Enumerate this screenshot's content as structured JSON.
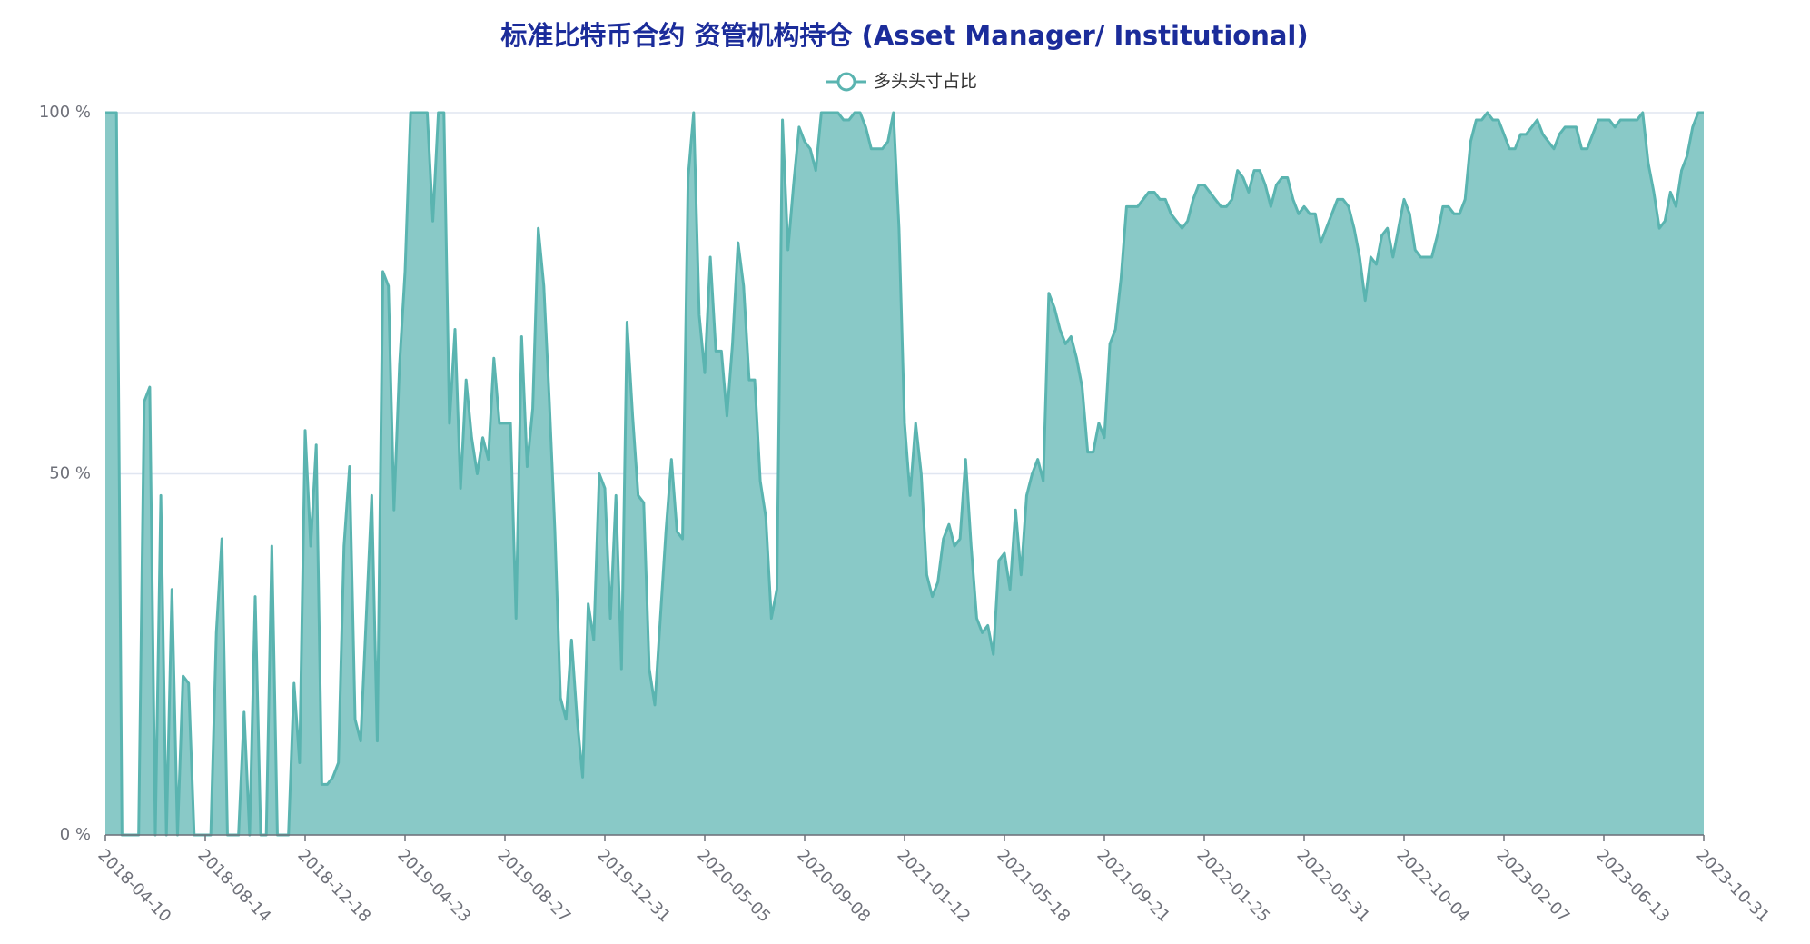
{
  "chart_data": {
    "type": "area",
    "title": "标准比特币合约 资管机构持仓 (Asset Manager/ Institutional)",
    "categories": [
      "2018-04-10",
      null,
      null,
      null,
      null,
      null,
      null,
      null,
      null,
      null,
      null,
      null,
      null,
      null,
      null,
      null,
      null,
      null,
      "2018-08-14",
      null,
      null,
      null,
      null,
      null,
      null,
      null,
      null,
      null,
      null,
      null,
      null,
      null,
      null,
      null,
      null,
      null,
      "2018-12-18",
      null,
      null,
      null,
      null,
      null,
      null,
      null,
      null,
      null,
      null,
      null,
      null,
      null,
      null,
      null,
      null,
      null,
      "2019-04-23",
      null,
      null,
      null,
      null,
      null,
      null,
      null,
      null,
      null,
      null,
      null,
      null,
      null,
      null,
      null,
      null,
      null,
      "2019-08-27",
      null,
      null,
      null,
      null,
      null,
      null,
      null,
      null,
      null,
      null,
      null,
      null,
      null,
      null,
      null,
      null,
      null,
      "2019-12-31",
      null,
      null,
      null,
      null,
      null,
      null,
      null,
      null,
      null,
      null,
      null,
      null,
      null,
      null,
      null,
      null,
      null,
      "2020-05-05",
      null,
      null,
      null,
      null,
      null,
      null,
      null,
      null,
      null,
      null,
      null,
      null,
      null,
      null,
      null,
      null,
      null,
      "2020-09-08",
      null,
      null,
      null,
      null,
      null,
      null,
      null,
      null,
      null,
      null,
      null,
      null,
      null,
      null,
      null,
      null,
      null,
      "2021-01-12",
      null,
      null,
      null,
      null,
      null,
      null,
      null,
      null,
      null,
      null,
      null,
      null,
      null,
      null,
      null,
      null,
      null,
      "2021-05-18",
      null,
      null,
      null,
      null,
      null,
      null,
      null,
      null,
      null,
      null,
      null,
      null,
      null,
      null,
      null,
      null,
      null,
      "2021-09-21",
      null,
      null,
      null,
      null,
      null,
      null,
      null,
      null,
      null,
      null,
      null,
      null,
      null,
      null,
      null,
      null,
      null,
      "2022-01-25",
      null,
      null,
      null,
      null,
      null,
      null,
      null,
      null,
      null,
      null,
      null,
      null,
      null,
      null,
      null,
      null,
      null,
      "2022-05-31",
      null,
      null,
      null,
      null,
      null,
      null,
      null,
      null,
      null,
      null,
      null,
      null,
      null,
      null,
      null,
      null,
      null,
      "2022-10-04",
      null,
      null,
      null,
      null,
      null,
      null,
      null,
      null,
      null,
      null,
      null,
      null,
      null,
      null,
      null,
      null,
      null,
      "2023-02-07",
      null,
      null,
      null,
      null,
      null,
      null,
      null,
      null,
      null,
      null,
      null,
      null,
      null,
      null,
      null,
      null,
      null,
      "2023-06-13",
      null,
      null,
      null,
      null,
      null,
      null,
      null,
      null,
      null,
      null,
      null,
      null,
      null,
      null,
      null,
      null,
      null,
      "2023-10-31"
    ],
    "series": [
      {
        "name": "多头头寸占比",
        "color": "#5ab4b0",
        "fill": "#89c9c7",
        "values": [
          100,
          100,
          100,
          0,
          0,
          0,
          0,
          60,
          62,
          0,
          47,
          0,
          34,
          0,
          22,
          21,
          0,
          0,
          0,
          0,
          28,
          41,
          0,
          0,
          0,
          17,
          0,
          33,
          0,
          0,
          40,
          0,
          0,
          0,
          21,
          10,
          56,
          40,
          54,
          7,
          7,
          8,
          10,
          40,
          51,
          16,
          13,
          30,
          47,
          13,
          78,
          76,
          45,
          65,
          78,
          100,
          100,
          100,
          100,
          85,
          100,
          100,
          57,
          70,
          48,
          63,
          55,
          50,
          55,
          52,
          66,
          57,
          57,
          57,
          30,
          69,
          51,
          59,
          84,
          76,
          60,
          42,
          19,
          16,
          27,
          16,
          8,
          32,
          27,
          50,
          48,
          30,
          47,
          23,
          71,
          58,
          47,
          46,
          23,
          18,
          30,
          42,
          52,
          42,
          41,
          91,
          100,
          72,
          64,
          80,
          67,
          67,
          58,
          68,
          82,
          76,
          63,
          63,
          49,
          44,
          30,
          34,
          99,
          81,
          90,
          98,
          96,
          95,
          92,
          100,
          100,
          100,
          100,
          99,
          99,
          100,
          100,
          98,
          95,
          95,
          95,
          96,
          100,
          84,
          57,
          47,
          57,
          50,
          36,
          33,
          35,
          41,
          43,
          40,
          41,
          52,
          40,
          30,
          28,
          29,
          25,
          38,
          39,
          34,
          45,
          36,
          47,
          50,
          52,
          49,
          75,
          73,
          70,
          68,
          69,
          66,
          62,
          53,
          53,
          57,
          55,
          68,
          70,
          77,
          87,
          87,
          87,
          88,
          89,
          89,
          88,
          88,
          86,
          85,
          84,
          85,
          88,
          90,
          90,
          89,
          88,
          87,
          87,
          88,
          92,
          91,
          89,
          92,
          92,
          90,
          87,
          90,
          91,
          91,
          88,
          86,
          87,
          86,
          86,
          82,
          84,
          86,
          88,
          88,
          87,
          84,
          80,
          74,
          80,
          79,
          83,
          84,
          80,
          84,
          88,
          86,
          81,
          80,
          80,
          80,
          83,
          87,
          87,
          86,
          86,
          88,
          96,
          99,
          99,
          100,
          99,
          99,
          97,
          95,
          95,
          97,
          97,
          98,
          99,
          97,
          96,
          95,
          97,
          98,
          98,
          98,
          95,
          95,
          97,
          99,
          99,
          99,
          98,
          99,
          99,
          99,
          99,
          100,
          93,
          89,
          84,
          85,
          89,
          87,
          92,
          94,
          98,
          100,
          100
        ]
      }
    ],
    "ylim": [
      0,
      100
    ],
    "yticks": [
      {
        "value": 0,
        "label": "0 %"
      },
      {
        "value": 50,
        "label": "50 %"
      },
      {
        "value": 100,
        "label": "100 %"
      }
    ],
    "grid": true,
    "legend": "top"
  }
}
